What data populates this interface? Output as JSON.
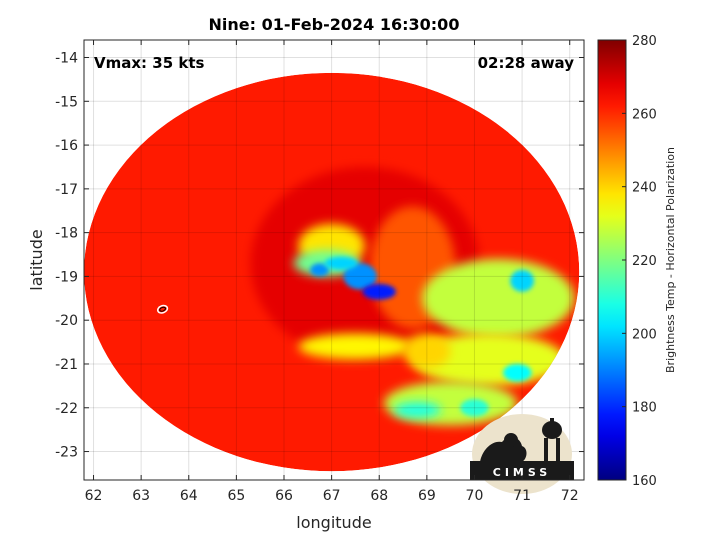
{
  "chart_data": {
    "type": "heatmap",
    "title": "Nine: 01-Feb-2024 16:30:00",
    "xlabel": "longitude",
    "ylabel": "latitude",
    "xlim": [
      61.8,
      72.3
    ],
    "ylim": [
      -23.65,
      -13.6
    ],
    "x_ticks": [
      62,
      63,
      64,
      65,
      66,
      67,
      68,
      69,
      70,
      71,
      72
    ],
    "y_ticks": [
      -14,
      -15,
      -16,
      -17,
      -18,
      -19,
      -20,
      -21,
      -22,
      -23
    ],
    "grid": true,
    "colormap": "jet",
    "colorbar": {
      "label": "Brightness Temp - Horizontal Polarization",
      "range": [
        160,
        280
      ],
      "ticks": [
        160,
        180,
        200,
        220,
        240,
        260,
        280
      ]
    },
    "annotations": {
      "vmax": "Vmax: 35 kts",
      "time_offset": "02:28 away"
    },
    "swath": {
      "center_lon": 67.0,
      "center_lat": -18.9,
      "radius_lon": 5.2,
      "radius_lat": 4.55
    },
    "background_temp": 262,
    "features": [
      {
        "lon": 67.7,
        "lat": -18.7,
        "rx": 2.4,
        "ry": 2.2,
        "temp": 268
      },
      {
        "lon": 68.7,
        "lat": -18.8,
        "rx": 0.9,
        "ry": 1.4,
        "temp": 255
      },
      {
        "lon": 67.0,
        "lat": -18.3,
        "rx": 0.7,
        "ry": 0.5,
        "temp": 238
      },
      {
        "lon": 66.9,
        "lat": -18.7,
        "rx": 0.7,
        "ry": 0.3,
        "temp": 218
      },
      {
        "lon": 67.6,
        "lat": -19.0,
        "rx": 0.35,
        "ry": 0.3,
        "temp": 192
      },
      {
        "lon": 68.0,
        "lat": -19.35,
        "rx": 0.35,
        "ry": 0.18,
        "temp": 178
      },
      {
        "lon": 66.75,
        "lat": -18.85,
        "rx": 0.2,
        "ry": 0.15,
        "temp": 192
      },
      {
        "lon": 67.2,
        "lat": -18.7,
        "rx": 0.35,
        "ry": 0.15,
        "temp": 200
      },
      {
        "lon": 67.5,
        "lat": -20.6,
        "rx": 1.2,
        "ry": 0.3,
        "temp": 236
      },
      {
        "lon": 70.5,
        "lat": -19.5,
        "rx": 1.6,
        "ry": 0.9,
        "temp": 228
      },
      {
        "lon": 71.0,
        "lat": -19.1,
        "rx": 0.25,
        "ry": 0.25,
        "temp": 200
      },
      {
        "lon": 70.3,
        "lat": -20.9,
        "rx": 1.6,
        "ry": 0.6,
        "temp": 232
      },
      {
        "lon": 70.9,
        "lat": -21.2,
        "rx": 0.3,
        "ry": 0.2,
        "temp": 205
      },
      {
        "lon": 69.5,
        "lat": -21.9,
        "rx": 1.4,
        "ry": 0.5,
        "temp": 228
      },
      {
        "lon": 68.8,
        "lat": -22.05,
        "rx": 0.5,
        "ry": 0.18,
        "temp": 208
      },
      {
        "lon": 70.0,
        "lat": -22.0,
        "rx": 0.3,
        "ry": 0.2,
        "temp": 210
      },
      {
        "lon": 69.0,
        "lat": -20.7,
        "rx": 0.5,
        "ry": 0.4,
        "temp": 240
      }
    ],
    "contour_marker": {
      "lon": 63.45,
      "lat": -19.75
    }
  },
  "logo": {
    "text": "CIMSS"
  }
}
